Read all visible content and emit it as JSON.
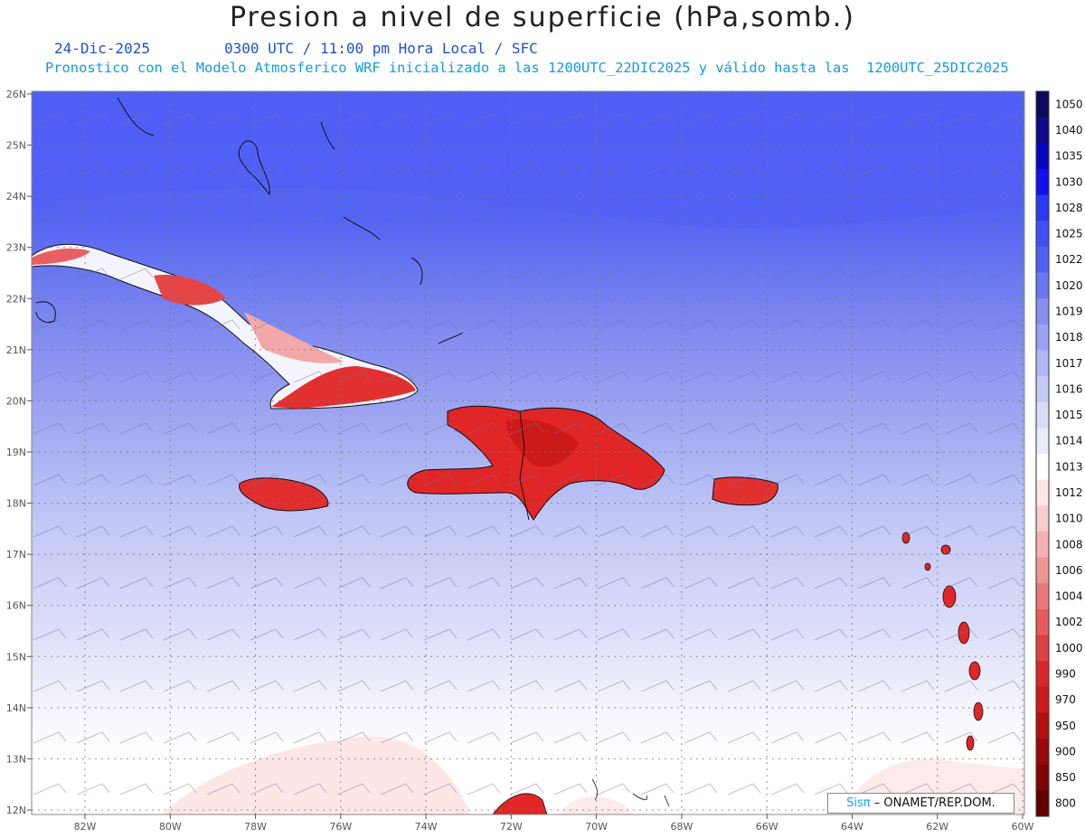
{
  "title": "Presion a nivel de superficie (hPa,somb.)",
  "date": "24-Dic-2025",
  "time_line": "0300 UTC / 11:00 pm Hora Local / SFC",
  "model_line": "Pronostico con el Modelo Atmosferico WRF inicializado a las 1200UTC_22DIC2025 y válido hasta las  1200UTC_25DIC2025",
  "lat_labels": [
    "26N",
    "25N",
    "24N",
    "23N",
    "22N",
    "21N",
    "20N",
    "19N",
    "18N",
    "17N",
    "16N",
    "15N",
    "14N",
    "13N",
    "12N"
  ],
  "lon_labels": [
    "82W",
    "80W",
    "78W",
    "76W",
    "74W",
    "72W",
    "70W",
    "68W",
    "66W",
    "64W",
    "62W",
    "60W"
  ],
  "colorbar": {
    "levels": [
      "1050",
      "1040",
      "1035",
      "1030",
      "1028",
      "1025",
      "1022",
      "1020",
      "1019",
      "1018",
      "1017",
      "1016",
      "1015",
      "1014",
      "1013",
      "1012",
      "1010",
      "1008",
      "1006",
      "1004",
      "1002",
      "1000",
      "990",
      "970",
      "950",
      "900",
      "850",
      "800"
    ],
    "colors": [
      "#0a0a5a",
      "#0b0b8c",
      "#0808c4",
      "#1010f0",
      "#2a3af5",
      "#3f4ff5",
      "#5060f2",
      "#6a78f0",
      "#8590f0",
      "#9aa3f2",
      "#b0b7f4",
      "#c4c9f6",
      "#d8dbf8",
      "#ebecfa",
      "#ffffff",
      "#fde6e6",
      "#f9cccc",
      "#f5b0b0",
      "#f09595",
      "#eb7979",
      "#e65c5c",
      "#e04040",
      "#d92626",
      "#cc1a1a",
      "#b30f0f",
      "#990808",
      "#800404",
      "#600000"
    ]
  },
  "credit": {
    "brand": "Sisπ",
    "org": "– ONAMET/REP.DOM."
  }
}
